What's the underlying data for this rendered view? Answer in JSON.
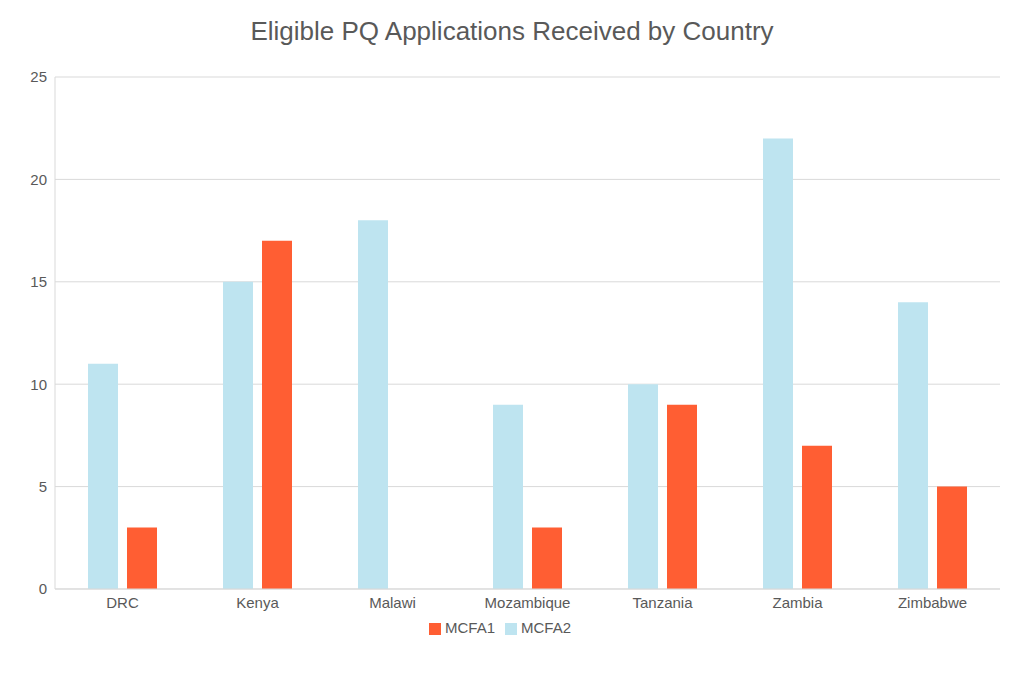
{
  "chart_data": {
    "type": "bar",
    "title": "Eligible PQ Applications Received by Country",
    "categories": [
      "DRC",
      "Kenya",
      "Malawi",
      "Mozambique",
      "Tanzania",
      "Zambia",
      "Zimbabwe"
    ],
    "series": [
      {
        "name": "MCFA2",
        "color": "#bee4f0",
        "values": [
          11,
          15,
          18,
          9,
          10,
          22,
          14
        ]
      },
      {
        "name": "MCFA1",
        "color": "#ff5e33",
        "values": [
          3,
          17,
          0,
          3,
          9,
          7,
          5
        ]
      }
    ],
    "ylim": [
      0,
      25
    ],
    "yticks": [
      0,
      5,
      10,
      15,
      20,
      25
    ],
    "grid": true,
    "legend": "bottom"
  }
}
